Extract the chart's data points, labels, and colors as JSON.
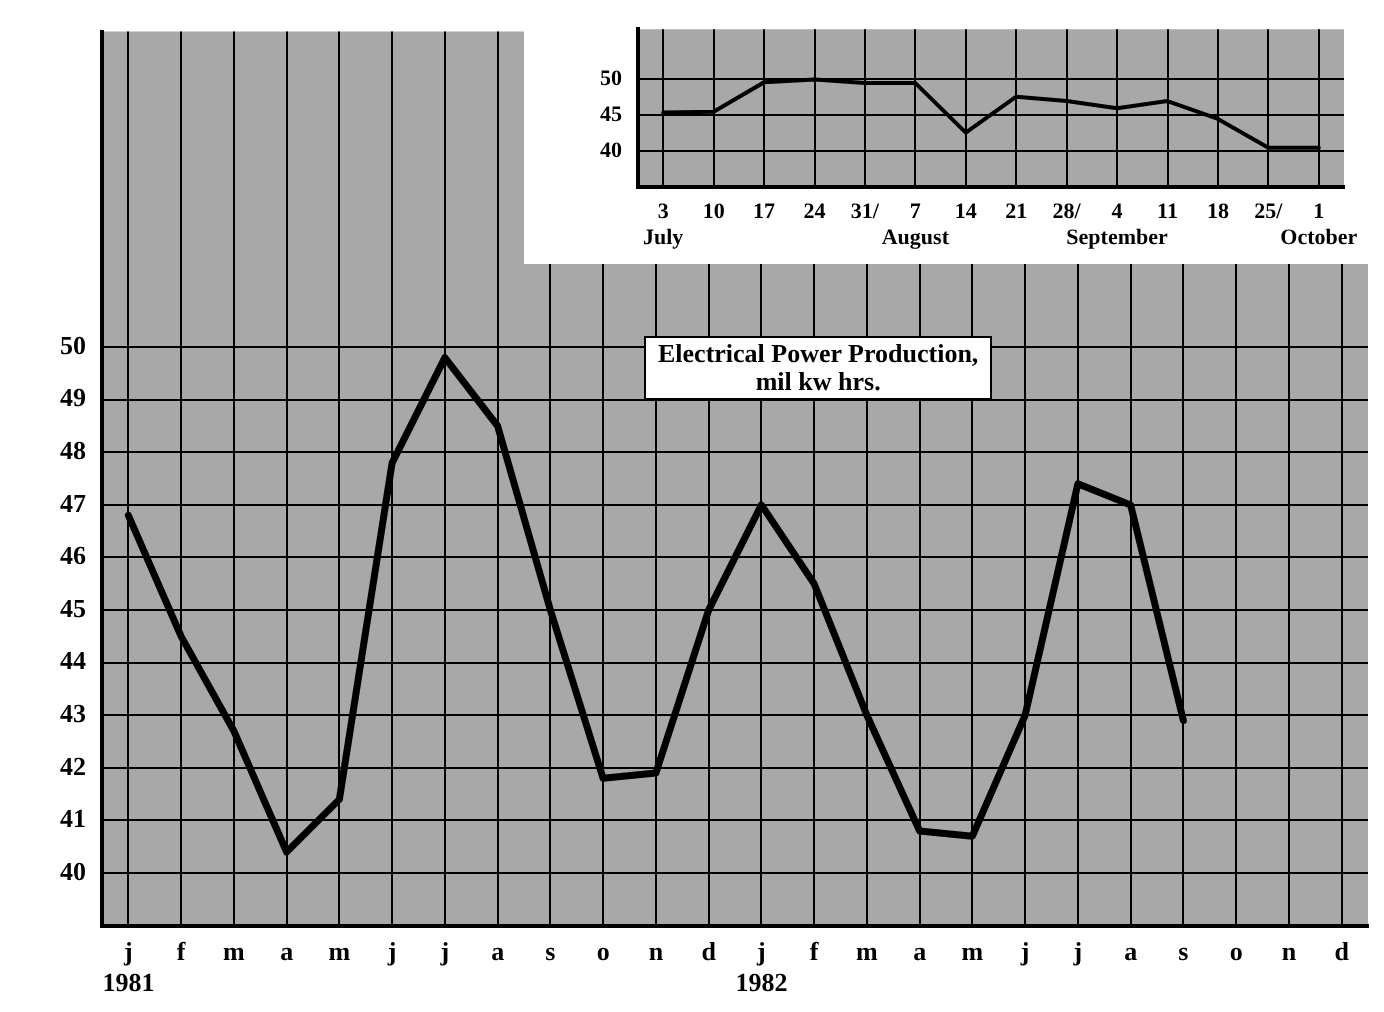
{
  "chart_data": [
    {
      "type": "line",
      "categories": [
        "3\nJuly",
        "10",
        "17",
        "24",
        "31/",
        "7\nAugust",
        "14",
        "21",
        "28/",
        "4\nSeptember",
        "11",
        "18",
        "25/",
        "1\nOctober"
      ],
      "values": [
        45.4,
        45.5,
        49.6,
        50,
        49.5,
        49.5,
        42.6,
        47.6,
        47,
        46,
        47,
        44.5,
        40.5,
        40.5
      ],
      "color": "#000000",
      "ylim": [
        35,
        57
      ],
      "yticks": [
        40,
        45,
        50
      ],
      "grid": true
    },
    {
      "type": "line",
      "title": "Electrical Power Production,\nmil kw hrs.",
      "categories": [
        "j\n1981",
        "f",
        "m",
        "a",
        "m",
        "j",
        "j",
        "a",
        "s",
        "o",
        "n",
        "d",
        "j\n1982",
        "f",
        "m",
        "a",
        "m",
        "j",
        "j",
        "a",
        "s",
        "o",
        "n",
        "d"
      ],
      "values": [
        46.8,
        44.5,
        42.7,
        40.4,
        41.4,
        47.8,
        49.8,
        48.5,
        45,
        41.8,
        41.9,
        45,
        47,
        45.5,
        43,
        40.8,
        40.7,
        43,
        47.4,
        47,
        42.9,
        null,
        null,
        null
      ],
      "color": "#000000",
      "ylim": [
        39,
        56
      ],
      "yticks": [
        40,
        41,
        42,
        43,
        44,
        45,
        46,
        47,
        48,
        49,
        50
      ],
      "grid": true
    }
  ]
}
